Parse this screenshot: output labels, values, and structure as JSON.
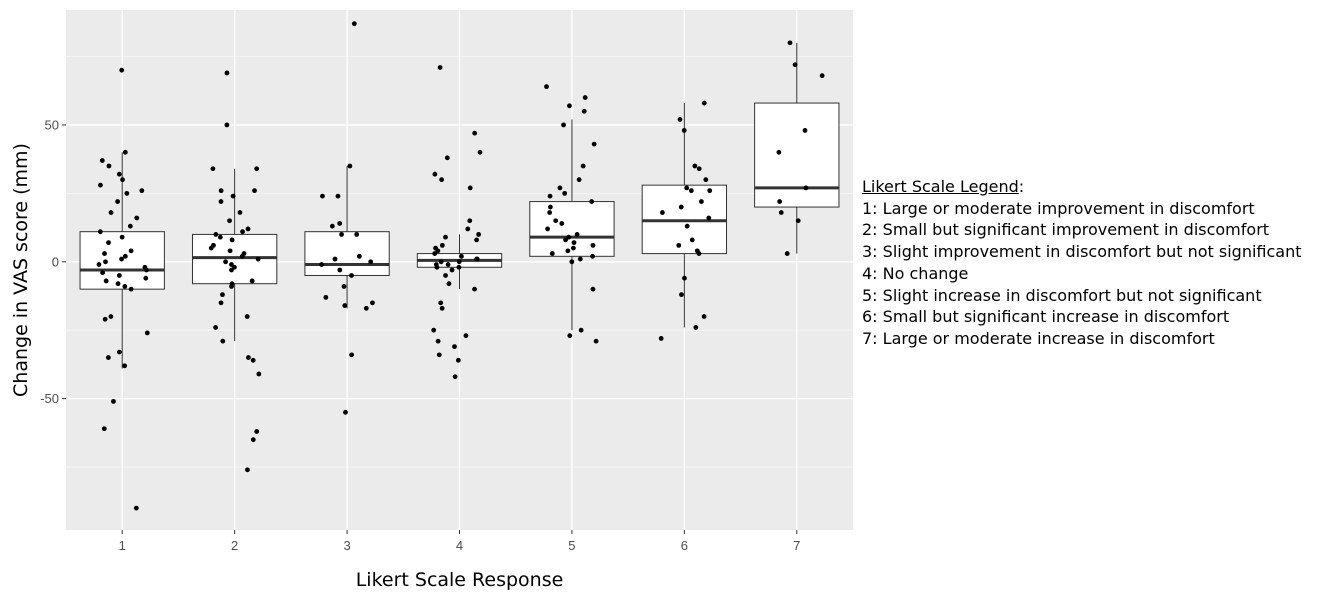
{
  "chart_data": {
    "type": "box",
    "xlabel": "Likert Scale Response",
    "ylabel": "Change in VAS score (mm)",
    "categories": [
      "1",
      "2",
      "3",
      "4",
      "5",
      "6",
      "7"
    ],
    "ylim": [
      -98,
      92
    ],
    "yticks": [
      -50,
      0,
      50
    ],
    "ytick_labels": [
      "-50",
      "0",
      "50"
    ],
    "grid": true,
    "background": "#ebebeb",
    "box_fill": "#ffffff",
    "box_stroke": "#333333",
    "point_color": "#000000",
    "boxes": [
      {
        "category": "1",
        "whisker_low": -39,
        "q1": -10,
        "median": -3,
        "q3": 11,
        "whisker_high": 40
      },
      {
        "category": "2",
        "whisker_low": -29,
        "q1": -8,
        "median": 1.5,
        "q3": 10,
        "whisker_high": 34
      },
      {
        "category": "3",
        "whisker_low": -17,
        "q1": -5,
        "median": -1,
        "q3": 11,
        "whisker_high": 35
      },
      {
        "category": "4",
        "whisker_low": -10,
        "q1": -2,
        "median": 0.5,
        "q3": 3,
        "whisker_high": 10
      },
      {
        "category": "5",
        "whisker_low": -25,
        "q1": 2,
        "median": 9,
        "q3": 22,
        "whisker_high": 52
      },
      {
        "category": "6",
        "whisker_low": -24,
        "q1": 3,
        "median": 15,
        "q3": 28,
        "whisker_high": 58
      },
      {
        "category": "7",
        "whisker_low": 3,
        "q1": 20,
        "median": 27,
        "q3": 58,
        "whisker_high": 80
      }
    ],
    "points": [
      {
        "category": "1",
        "values": [
          70,
          40,
          37,
          35,
          32,
          30,
          28,
          26,
          25,
          22,
          18,
          16,
          13,
          11,
          9,
          7,
          4,
          3,
          2,
          1,
          0,
          -1,
          -2,
          -3,
          -4,
          -5,
          -6,
          -7,
          -8,
          -9,
          -10,
          -20,
          -21,
          -26,
          -33,
          -35,
          -38,
          -51,
          -61,
          -90
        ]
      },
      {
        "category": "2",
        "values": [
          69,
          50,
          34,
          34,
          26,
          26,
          24,
          22,
          18,
          15,
          12,
          11,
          10,
          9,
          8,
          6,
          5,
          4,
          3,
          2,
          1,
          0,
          -1,
          -2,
          -3,
          -7,
          -8,
          -9,
          -12,
          -15,
          -20,
          -24,
          -29,
          -35,
          -36,
          -41,
          -62,
          -65,
          -76
        ]
      },
      {
        "category": "3",
        "values": [
          87,
          35,
          24,
          24,
          14,
          13,
          10,
          10,
          2,
          1,
          0,
          -1,
          -3,
          -5,
          -9,
          -13,
          -15,
          -16,
          -17,
          -34,
          -55
        ]
      },
      {
        "category": "4",
        "values": [
          71,
          47,
          40,
          38,
          32,
          30,
          27,
          15,
          12,
          10,
          9,
          8,
          6,
          5,
          4,
          3,
          2,
          1,
          1,
          0,
          0,
          -1,
          -1,
          -2,
          -2,
          -3,
          -5,
          -8,
          -10,
          -15,
          -17,
          -25,
          -27,
          -29,
          -31,
          -34,
          -36,
          -42
        ]
      },
      {
        "category": "5",
        "values": [
          64,
          60,
          57,
          55,
          50,
          43,
          35,
          30,
          27,
          25,
          24,
          22,
          20,
          18,
          15,
          14,
          12,
          10,
          9,
          8,
          7,
          6,
          5,
          4,
          3,
          2,
          1,
          0,
          -10,
          -25,
          -27,
          -29
        ]
      },
      {
        "category": "6",
        "values": [
          58,
          52,
          48,
          35,
          34,
          30,
          27,
          26,
          26,
          22,
          20,
          18,
          16,
          13,
          8,
          6,
          4,
          3,
          -6,
          -12,
          -20,
          -24,
          -28
        ]
      },
      {
        "category": "7",
        "values": [
          80,
          72,
          68,
          48,
          40,
          27,
          22,
          18,
          15,
          3
        ]
      }
    ]
  },
  "legend": {
    "title": "Likert Scale Legend",
    "title_suffix": ":",
    "items": [
      "1: Large or moderate improvement in discomfort",
      "2: Small but significant improvement in discomfort",
      "3: Slight improvement in discomfort but not significant",
      "4: No change",
      "5: Slight increase in discomfort but not significant",
      "6: Small but significant increase in discomfort",
      "7: Large or moderate increase in discomfort"
    ]
  }
}
